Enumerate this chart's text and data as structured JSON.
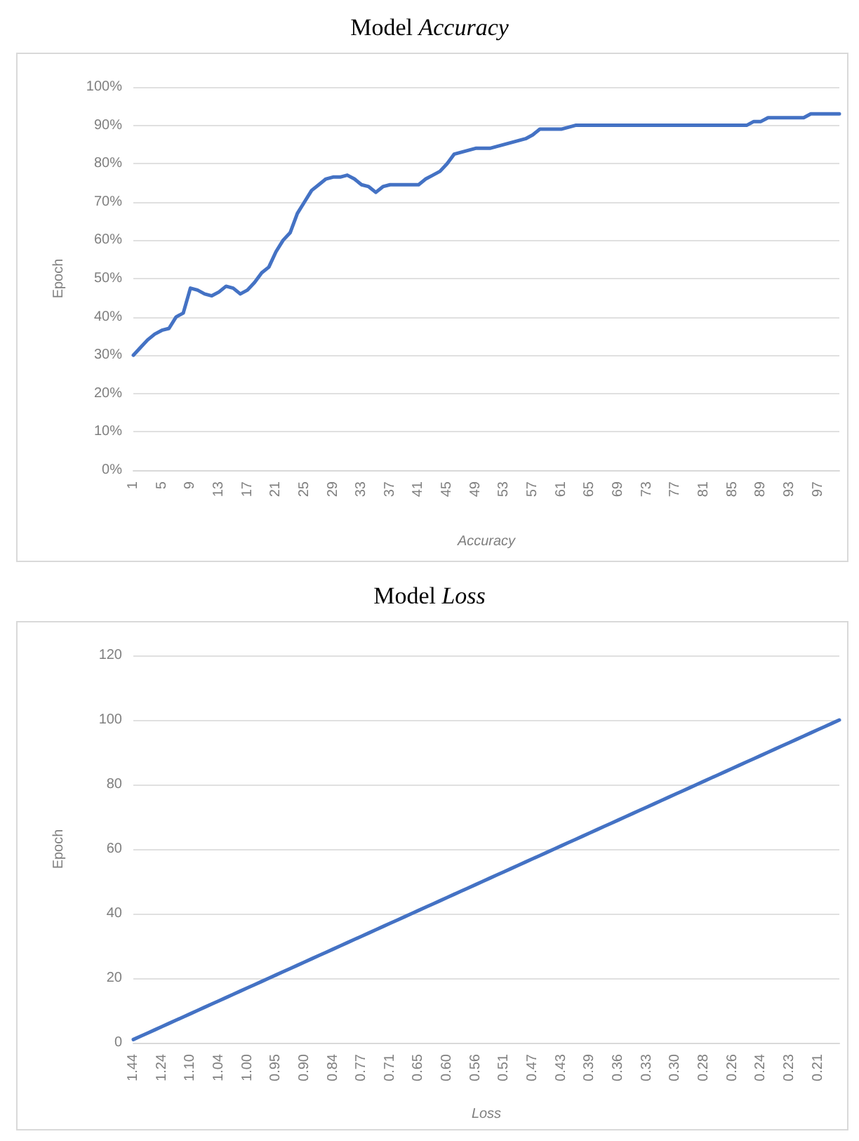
{
  "chart_data": [
    {
      "type": "line",
      "title": "Model Accuracy",
      "xlabel": "Accuracy",
      "ylabel": "Epoch",
      "categories": [
        "1",
        null,
        null,
        null,
        "5",
        null,
        null,
        null,
        "9",
        null,
        null,
        null,
        "13",
        null,
        null,
        null,
        "17",
        null,
        null,
        null,
        "21",
        null,
        null,
        null,
        "25",
        null,
        null,
        null,
        "29",
        null,
        null,
        null,
        "33",
        null,
        null,
        null,
        "37",
        null,
        null,
        null,
        "41",
        null,
        null,
        null,
        "45",
        null,
        null,
        null,
        "49",
        null,
        null,
        null,
        "53",
        null,
        null,
        null,
        "57",
        null,
        null,
        null,
        "61",
        null,
        null,
        null,
        "65",
        null,
        null,
        null,
        "69",
        null,
        null,
        null,
        "73",
        null,
        null,
        null,
        "77",
        null,
        null,
        null,
        "81",
        null,
        null,
        null,
        "85",
        null,
        null,
        null,
        "89",
        null,
        null,
        null,
        "93",
        null,
        null,
        null,
        "97",
        null,
        null,
        null
      ],
      "series": [
        {
          "color": "#4472c4",
          "values": [
            30,
            32,
            34,
            35.5,
            36.5,
            37,
            40,
            41,
            47.5,
            47,
            46,
            45.5,
            46.5,
            48,
            47.5,
            46,
            47,
            49,
            51.5,
            53,
            57,
            60,
            62,
            67,
            70,
            73,
            74.5,
            76,
            76.5,
            76.5,
            77,
            76,
            74.5,
            74,
            72.5,
            74,
            74.5,
            74.5,
            74.5,
            74.5,
            74.5,
            76,
            77,
            78,
            80,
            82.5,
            83,
            83.5,
            84,
            84,
            84,
            84.5,
            85,
            85.5,
            86,
            86.5,
            87.5,
            89,
            89,
            89,
            89,
            89.5,
            90,
            90,
            90,
            90,
            90,
            90,
            90,
            90,
            90,
            90,
            90,
            90,
            90,
            90,
            90,
            90,
            90,
            90,
            90,
            90,
            90,
            90,
            90,
            90,
            90,
            91,
            91,
            92,
            92,
            92,
            92,
            92,
            92,
            93,
            93,
            93,
            93,
            93
          ]
        }
      ],
      "ylim": [
        0,
        100
      ],
      "yticks": [
        {
          "value": 0,
          "label": "0%"
        },
        {
          "value": 10,
          "label": "10%"
        },
        {
          "value": 20,
          "label": "20%"
        },
        {
          "value": 30,
          "label": "30%"
        },
        {
          "value": 40,
          "label": "40%"
        },
        {
          "value": 50,
          "label": "50%"
        },
        {
          "value": 60,
          "label": "60%"
        },
        {
          "value": 70,
          "label": "70%"
        },
        {
          "value": 80,
          "label": "80%"
        },
        {
          "value": 90,
          "label": "90%"
        },
        {
          "value": 100,
          "label": "100%"
        }
      ],
      "grid": "y",
      "marker": "none",
      "line_style": "solid"
    },
    {
      "type": "line",
      "title": "Model Loss",
      "xlabel": "Loss",
      "ylabel": "Epoch",
      "categories": [
        "1.44",
        null,
        null,
        null,
        "1.24",
        null,
        null,
        null,
        "1.10",
        null,
        null,
        null,
        "1.04",
        null,
        null,
        null,
        "1.00",
        null,
        null,
        null,
        "0.95",
        null,
        null,
        null,
        "0.90",
        null,
        null,
        null,
        "0.84",
        null,
        null,
        null,
        "0.77",
        null,
        null,
        null,
        "0.71",
        null,
        null,
        null,
        "0.65",
        null,
        null,
        null,
        "0.60",
        null,
        null,
        null,
        "0.56",
        null,
        null,
        null,
        "0.51",
        null,
        null,
        null,
        "0.47",
        null,
        null,
        null,
        "0.43",
        null,
        null,
        null,
        "0.39",
        null,
        null,
        null,
        "0.36",
        null,
        null,
        null,
        "0.33",
        null,
        null,
        null,
        "0.30",
        null,
        null,
        null,
        "0.28",
        null,
        null,
        null,
        "0.26",
        null,
        null,
        null,
        "0.24",
        null,
        null,
        null,
        "0.23",
        null,
        null,
        null,
        "0.21",
        null,
        null,
        null
      ],
      "series": [
        {
          "color": "#4472c4",
          "values": [
            1,
            2,
            3,
            4,
            5,
            6,
            7,
            8,
            9,
            10,
            11,
            12,
            13,
            14,
            15,
            16,
            17,
            18,
            19,
            20,
            21,
            22,
            23,
            24,
            25,
            26,
            27,
            28,
            29,
            30,
            31,
            32,
            33,
            34,
            35,
            36,
            37,
            38,
            39,
            40,
            41,
            42,
            43,
            44,
            45,
            46,
            47,
            48,
            49,
            50,
            51,
            52,
            53,
            54,
            55,
            56,
            57,
            58,
            59,
            60,
            61,
            62,
            63,
            64,
            65,
            66,
            67,
            68,
            69,
            70,
            71,
            72,
            73,
            74,
            75,
            76,
            77,
            78,
            79,
            80,
            81,
            82,
            83,
            84,
            85,
            86,
            87,
            88,
            89,
            90,
            91,
            92,
            93,
            94,
            95,
            96,
            97,
            98,
            99,
            100
          ]
        }
      ],
      "ylim": [
        0,
        120
      ],
      "yticks": [
        0,
        20,
        40,
        60,
        80,
        100,
        120
      ],
      "grid": "y",
      "marker": "none",
      "line_style": "solid"
    }
  ]
}
